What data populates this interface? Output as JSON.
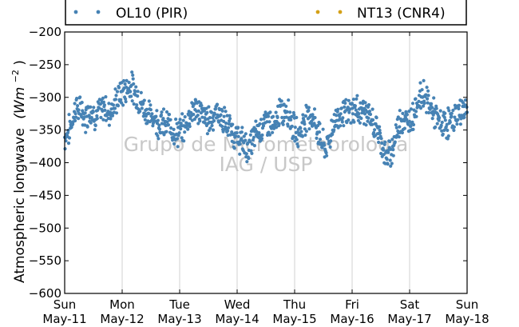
{
  "chart_data": {
    "type": "scatter",
    "ylabel_text": "Atmospheric longwave",
    "ylabel_unit_base": "(Wm",
    "ylabel_unit_exp": "−2",
    "ylabel_unit_close": ")",
    "ylim": [
      -600,
      -200
    ],
    "yticks": [
      -200,
      -250,
      -300,
      -350,
      -400,
      -450,
      -500,
      -550,
      -600
    ],
    "yticklabels": [
      "−200",
      "−250",
      "−300",
      "−350",
      "−400",
      "−450",
      "−500",
      "−550",
      "−600"
    ],
    "xlim": [
      0,
      7
    ],
    "xticks": [
      {
        "day": "Sun",
        "date": "May-11"
      },
      {
        "day": "Mon",
        "date": "May-12"
      },
      {
        "day": "Tue",
        "date": "May-13"
      },
      {
        "day": "Wed",
        "date": "May-14"
      },
      {
        "day": "Thu",
        "date": "May-15"
      },
      {
        "day": "Fri",
        "date": "May-16"
      },
      {
        "day": "Sat",
        "date": "May-17"
      },
      {
        "day": "Sun",
        "date": "May-18"
      }
    ],
    "grid": true,
    "legend_position": "top",
    "watermark": [
      "Grupo de Micrometeorologia",
      "IAG / USP"
    ],
    "series": [
      {
        "name": "OL10 (PIR)",
        "color": "#4682b4",
        "points": [
          [
            0.0,
            -362
          ],
          [
            0.05,
            -355
          ],
          [
            0.1,
            -345
          ],
          [
            0.15,
            -330
          ],
          [
            0.2,
            -312
          ],
          [
            0.25,
            -322
          ],
          [
            0.3,
            -318
          ],
          [
            0.35,
            -335
          ],
          [
            0.4,
            -322
          ],
          [
            0.45,
            -318
          ],
          [
            0.5,
            -325
          ],
          [
            0.55,
            -330
          ],
          [
            0.6,
            -320
          ],
          [
            0.65,
            -322
          ],
          [
            0.7,
            -310
          ],
          [
            0.75,
            -328
          ],
          [
            0.8,
            -318
          ],
          [
            0.85,
            -315
          ],
          [
            0.9,
            -305
          ],
          [
            0.95,
            -298
          ],
          [
            1.0,
            -292
          ],
          [
            1.05,
            -290
          ],
          [
            1.1,
            -285
          ],
          [
            1.15,
            -280
          ],
          [
            1.2,
            -290
          ],
          [
            1.25,
            -295
          ],
          [
            1.3,
            -305
          ],
          [
            1.35,
            -312
          ],
          [
            1.4,
            -320
          ],
          [
            1.45,
            -325
          ],
          [
            1.5,
            -330
          ],
          [
            1.55,
            -328
          ],
          [
            1.6,
            -335
          ],
          [
            1.65,
            -340
          ],
          [
            1.7,
            -338
          ],
          [
            1.75,
            -345
          ],
          [
            1.8,
            -340
          ],
          [
            1.85,
            -345
          ],
          [
            1.9,
            -350
          ],
          [
            1.95,
            -355
          ],
          [
            2.0,
            -352
          ],
          [
            2.05,
            -350
          ],
          [
            2.1,
            -345
          ],
          [
            2.15,
            -330
          ],
          [
            2.2,
            -322
          ],
          [
            2.25,
            -315
          ],
          [
            2.3,
            -322
          ],
          [
            2.35,
            -320
          ],
          [
            2.4,
            -328
          ],
          [
            2.45,
            -332
          ],
          [
            2.5,
            -335
          ],
          [
            2.55,
            -330
          ],
          [
            2.6,
            -328
          ],
          [
            2.65,
            -322
          ],
          [
            2.7,
            -326
          ],
          [
            2.75,
            -335
          ],
          [
            2.8,
            -340
          ],
          [
            2.85,
            -345
          ],
          [
            2.9,
            -350
          ],
          [
            2.95,
            -358
          ],
          [
            3.0,
            -362
          ],
          [
            3.05,
            -365
          ],
          [
            3.1,
            -370
          ],
          [
            3.15,
            -375
          ],
          [
            3.2,
            -380
          ],
          [
            3.25,
            -370
          ],
          [
            3.3,
            -360
          ],
          [
            3.35,
            -352
          ],
          [
            3.4,
            -348
          ],
          [
            3.45,
            -342
          ],
          [
            3.5,
            -338
          ],
          [
            3.55,
            -335
          ],
          [
            3.6,
            -345
          ],
          [
            3.65,
            -350
          ],
          [
            3.7,
            -330
          ],
          [
            3.75,
            -320
          ],
          [
            3.8,
            -325
          ],
          [
            3.85,
            -315
          ],
          [
            3.9,
            -322
          ],
          [
            3.95,
            -340
          ],
          [
            4.0,
            -350
          ],
          [
            4.05,
            -355
          ],
          [
            4.1,
            -352
          ],
          [
            4.15,
            -340
          ],
          [
            4.2,
            -330
          ],
          [
            4.25,
            -325
          ],
          [
            4.3,
            -330
          ],
          [
            4.35,
            -338
          ],
          [
            4.4,
            -350
          ],
          [
            4.45,
            -362
          ],
          [
            4.5,
            -375
          ],
          [
            4.55,
            -380
          ],
          [
            4.6,
            -365
          ],
          [
            4.65,
            -348
          ],
          [
            4.7,
            -335
          ],
          [
            4.75,
            -330
          ],
          [
            4.8,
            -325
          ],
          [
            4.85,
            -320
          ],
          [
            4.9,
            -328
          ],
          [
            4.95,
            -325
          ],
          [
            5.0,
            -320
          ],
          [
            5.05,
            -318
          ],
          [
            5.1,
            -320
          ],
          [
            5.15,
            -322
          ],
          [
            5.2,
            -318
          ],
          [
            5.25,
            -325
          ],
          [
            5.3,
            -332
          ],
          [
            5.35,
            -338
          ],
          [
            5.4,
            -345
          ],
          [
            5.45,
            -352
          ],
          [
            5.5,
            -365
          ],
          [
            5.55,
            -380
          ],
          [
            5.6,
            -395
          ],
          [
            5.65,
            -388
          ],
          [
            5.7,
            -378
          ],
          [
            5.75,
            -360
          ],
          [
            5.8,
            -345
          ],
          [
            5.85,
            -330
          ],
          [
            5.9,
            -335
          ],
          [
            5.95,
            -340
          ],
          [
            6.0,
            -335
          ],
          [
            6.05,
            -328
          ],
          [
            6.1,
            -315
          ],
          [
            6.15,
            -305
          ],
          [
            6.2,
            -298
          ],
          [
            6.25,
            -292
          ],
          [
            6.3,
            -305
          ],
          [
            6.35,
            -312
          ],
          [
            6.4,
            -320
          ],
          [
            6.45,
            -330
          ],
          [
            6.5,
            -338
          ],
          [
            6.55,
            -342
          ],
          [
            6.6,
            -343
          ],
          [
            6.65,
            -340
          ],
          [
            6.7,
            -338
          ],
          [
            6.75,
            -335
          ],
          [
            6.8,
            -330
          ],
          [
            6.85,
            -325
          ],
          [
            6.9,
            -320
          ],
          [
            6.95,
            -318
          ],
          [
            7.0,
            -318
          ]
        ]
      },
      {
        "name": "NT13 (CNR4)",
        "color": "#d4a017",
        "points": []
      }
    ]
  }
}
